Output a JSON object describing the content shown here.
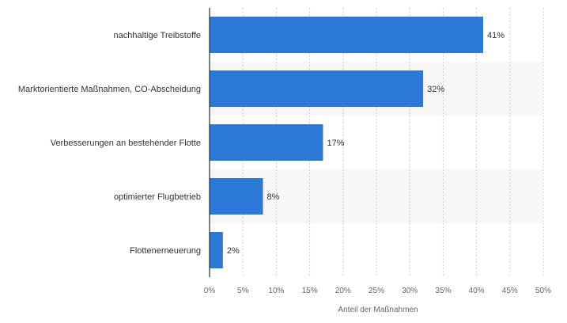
{
  "chart_data": {
    "type": "bar",
    "orientation": "horizontal",
    "categories": [
      "nachhaltige Treibstoffe",
      "Marktorientierte Maßnahmen, CO-Abscheidung",
      "Verbesserungen an bestehender Flotte",
      "optimierter Flugbetrieb",
      "Flottenerneuerung"
    ],
    "values": [
      41,
      32,
      17,
      8,
      2
    ],
    "value_labels": [
      "41%",
      "32%",
      "17%",
      "8%",
      "2%"
    ],
    "title": "",
    "xlabel": "Anteil der Maßnahmen",
    "ylabel": "",
    "xlim": [
      0,
      50
    ],
    "x_ticks": [
      0,
      5,
      10,
      15,
      20,
      25,
      30,
      35,
      40,
      45,
      50
    ],
    "x_tick_labels": [
      "0%",
      "5%",
      "10%",
      "15%",
      "20%",
      "25%",
      "30%",
      "35%",
      "40%",
      "45%",
      "50%"
    ],
    "grid": true,
    "legend": "none",
    "colors": {
      "bar": "#2b78d8",
      "band": "#f7f7f7",
      "grid": "#d0d0d0",
      "axis": "#2b2b2b",
      "text": "#333333",
      "muted": "#666666"
    }
  }
}
